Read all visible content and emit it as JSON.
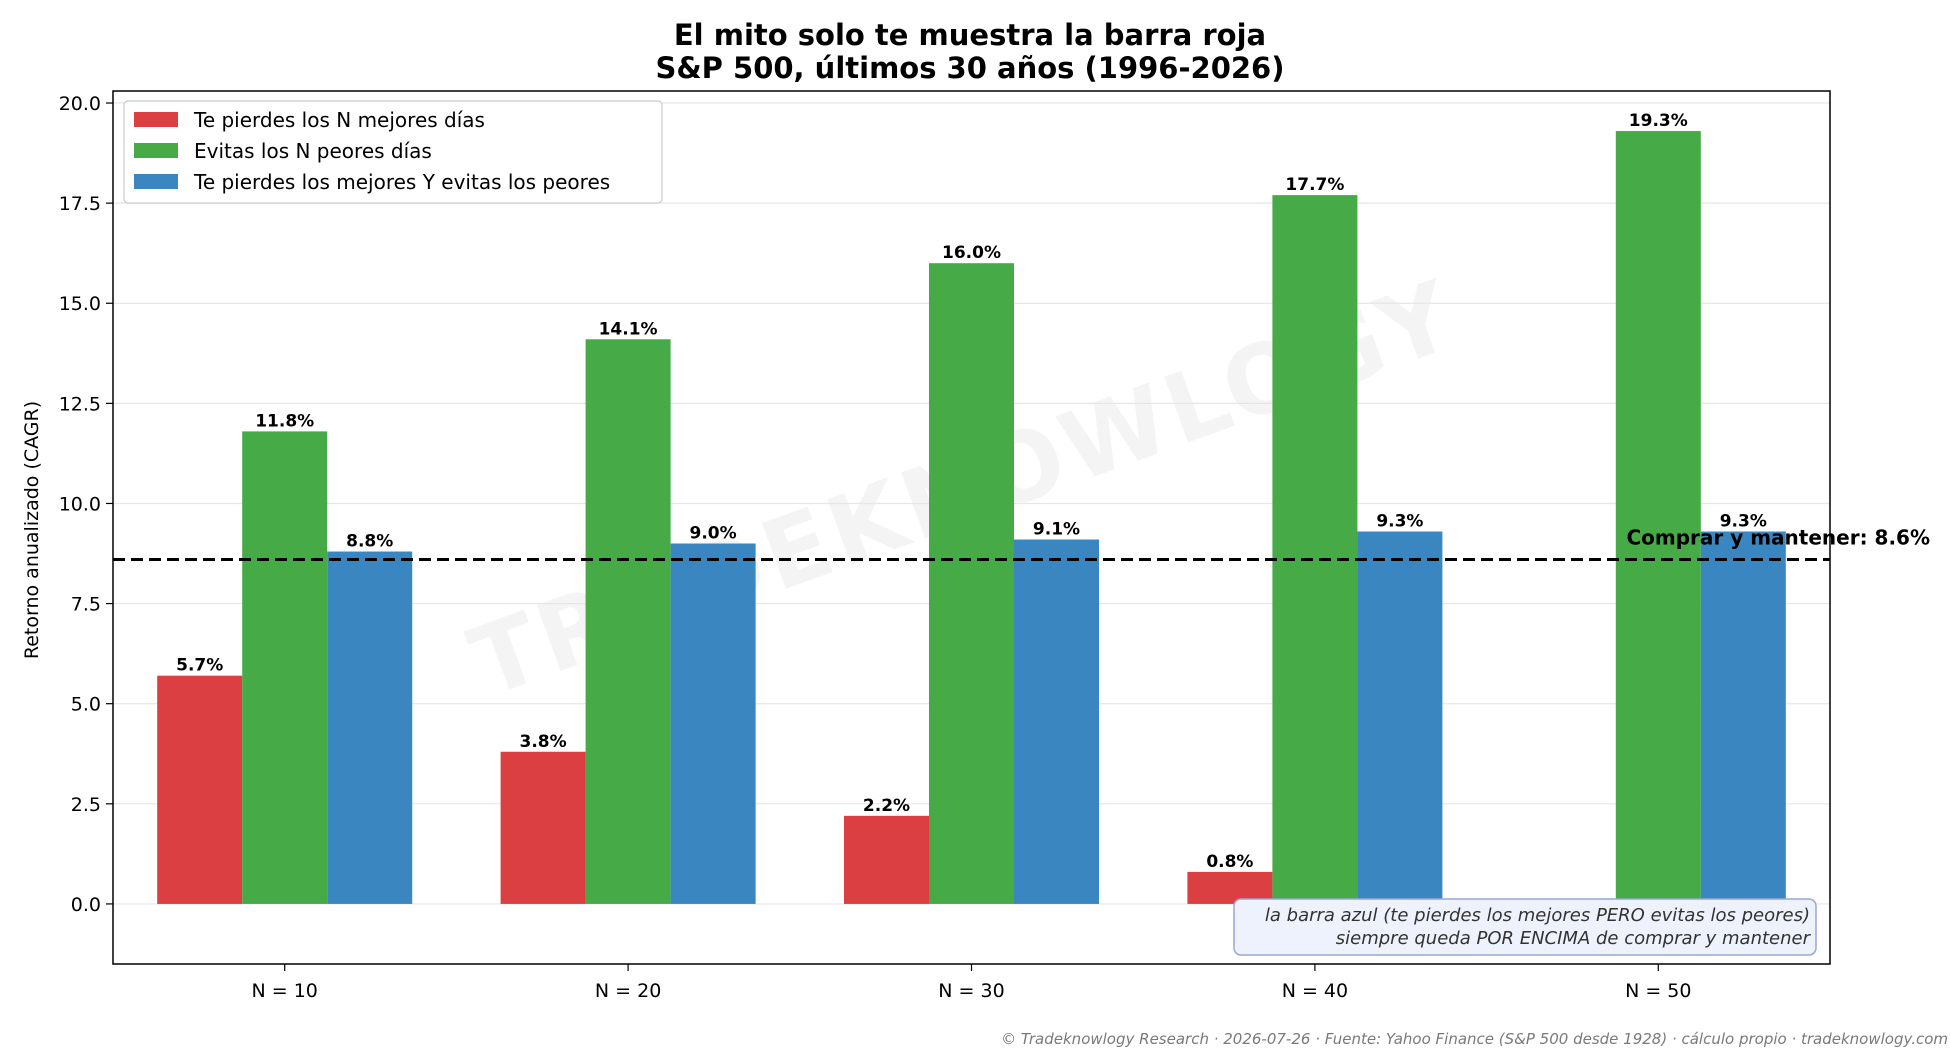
{
  "chart_data": {
    "type": "bar",
    "title": "El mito solo te muestra la barra roja",
    "subtitle": "S&P 500, últimos 30 años (1996-2026)",
    "xlabel": "",
    "ylabel": "Retorno anualizado (CAGR)",
    "ylim": [
      -1.5,
      20.3
    ],
    "yticks": [
      0.0,
      2.5,
      5.0,
      7.5,
      10.0,
      12.5,
      15.0,
      17.5,
      20.0
    ],
    "grid": "horizontal",
    "legend_position": "top-left",
    "categories": [
      "N = 10",
      "N = 20",
      "N = 30",
      "N = 40",
      "N = 50"
    ],
    "series": [
      {
        "name": "Te pierdes los N mejores días",
        "color": "#dc3f42",
        "values": [
          5.7,
          3.8,
          2.2,
          0.8,
          null
        ],
        "labels": [
          "5.7%",
          "3.8%",
          "2.2%",
          "0.8%",
          ""
        ]
      },
      {
        "name": "Evitas los N peores días",
        "color": "#46aa46",
        "values": [
          11.8,
          14.1,
          16.0,
          17.7,
          19.3
        ],
        "labels": [
          "11.8%",
          "14.1%",
          "16.0%",
          "17.7%",
          "19.3%"
        ]
      },
      {
        "name": "Te pierdes los mejores Y evitas los peores",
        "color": "#3a86c0",
        "values": [
          8.8,
          9.0,
          9.1,
          9.3,
          9.3
        ],
        "labels": [
          "8.8%",
          "9.0%",
          "9.1%",
          "9.3%",
          "9.3%"
        ]
      }
    ],
    "reference_line": {
      "value": 8.6,
      "label": "Comprar y mantener: 8.6%",
      "style": "dashed",
      "color": "#000000"
    },
    "annotation": {
      "lines": [
        "la barra azul (te pierdes los mejores PERO evitas los peores)",
        "siempre queda POR ENCIMA de comprar y mantener"
      ],
      "position": "bottom-right"
    },
    "watermark": "TRADEKNOWLOGY"
  },
  "footer": "© Tradeknowlogy Research   ·   2026-07-26   ·   Fuente: Yahoo Finance (S&P 500 desde 1928) · cálculo propio   ·   tradeknowlogy.com"
}
